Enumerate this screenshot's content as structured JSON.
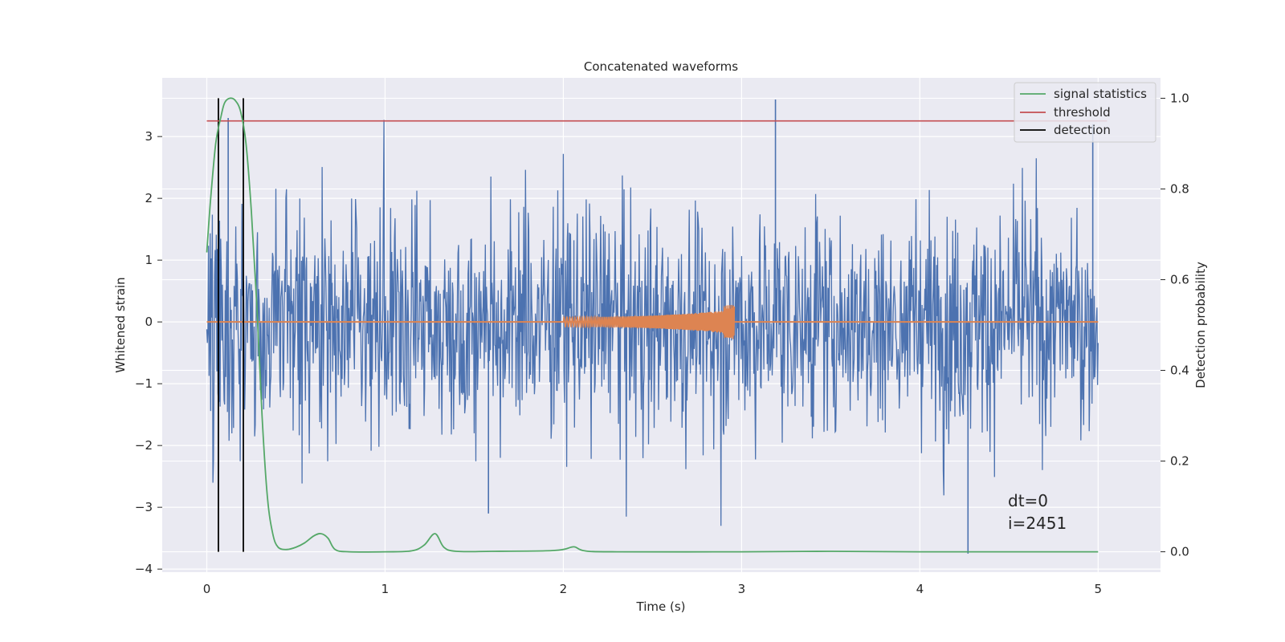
{
  "chart_data": {
    "type": "line",
    "title": "Concatenated waveforms",
    "xlabel": "Time (s)",
    "ylabel_left": "Whitened strain",
    "ylabel_right": "Detection probability",
    "xlim": [
      -0.25,
      5.35
    ],
    "ylim_left": [
      -4.05,
      3.95
    ],
    "ylim_right": [
      -0.045,
      1.045
    ],
    "x_ticks": [
      0,
      1,
      2,
      3,
      4,
      5
    ],
    "y_left_ticks": [
      3,
      2,
      1,
      0,
      -1,
      -2,
      -3,
      -4
    ],
    "y_right_ticks": [
      1.0,
      0.8,
      0.6,
      0.4,
      0.2,
      0.0
    ],
    "grid": true,
    "legend_position": "top-right",
    "colors": {
      "strain": "#4c72b0",
      "template": "#dd8452",
      "signal_statistics": "#55a868",
      "threshold": "#c44e52",
      "detection": "#000000",
      "background": "#eaeaf2"
    },
    "series": [
      {
        "name": "signal statistics",
        "axis": "right",
        "x": [
          0,
          0.02,
          0.05,
          0.08,
          0.1,
          0.13,
          0.16,
          0.19,
          0.22,
          0.25,
          0.28,
          0.31,
          0.34,
          0.37,
          0.4,
          0.45,
          0.5,
          0.55,
          0.6,
          0.64,
          0.68,
          0.72,
          0.8,
          1.0,
          1.15,
          1.22,
          1.28,
          1.33,
          1.4,
          1.6,
          1.9,
          2.0,
          2.06,
          2.12,
          2.3,
          3.0,
          3.5,
          4.0,
          4.5,
          5.0
        ],
        "y": [
          0.66,
          0.77,
          0.9,
          0.96,
          0.99,
          1.0,
          0.995,
          0.97,
          0.9,
          0.75,
          0.55,
          0.3,
          0.12,
          0.04,
          0.01,
          0.005,
          0.01,
          0.02,
          0.035,
          0.04,
          0.03,
          0.005,
          0.0,
          0.0,
          0.002,
          0.015,
          0.04,
          0.01,
          0.001,
          0.001,
          0.002,
          0.005,
          0.011,
          0.002,
          0.0,
          0.0,
          0.001,
          0.0,
          0.0,
          0.0
        ]
      },
      {
        "name": "threshold",
        "axis": "right",
        "x": [
          0,
          5.05
        ],
        "y": [
          0.95,
          0.95
        ]
      },
      {
        "name": "detection",
        "axis": "right",
        "x": [
          0.065,
          0.205
        ],
        "y_range": [
          0,
          1.0
        ]
      }
    ],
    "annotations": [
      "dt=0",
      "i=2451"
    ]
  }
}
